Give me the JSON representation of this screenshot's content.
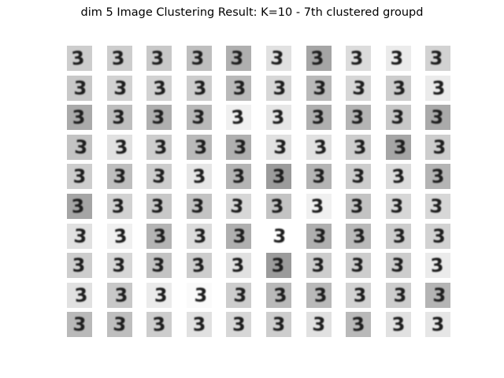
{
  "figure": {
    "title": "dim 5 Image Clustering Result: K=10 - 7th clustered groupd"
  },
  "cluster_grid": {
    "rows": 10,
    "cols": 10,
    "digit": "3",
    "tile_background_gray": [
      [
        205,
        205,
        200,
        190,
        175,
        225,
        165,
        220,
        235,
        210
      ],
      [
        200,
        210,
        210,
        205,
        185,
        215,
        185,
        215,
        205,
        235
      ],
      [
        170,
        190,
        175,
        185,
        240,
        230,
        175,
        180,
        200,
        170
      ],
      [
        195,
        225,
        205,
        185,
        175,
        225,
        225,
        205,
        165,
        205
      ],
      [
        205,
        190,
        205,
        230,
        180,
        155,
        180,
        205,
        220,
        180
      ],
      [
        165,
        210,
        200,
        195,
        215,
        195,
        240,
        195,
        215,
        215
      ],
      [
        225,
        240,
        180,
        220,
        175,
        255,
        175,
        185,
        205,
        210
      ],
      [
        205,
        215,
        195,
        205,
        225,
        155,
        205,
        205,
        205,
        235
      ],
      [
        225,
        200,
        235,
        250,
        205,
        185,
        185,
        210,
        205,
        180
      ],
      [
        185,
        190,
        205,
        225,
        215,
        205,
        225,
        185,
        225,
        230
      ]
    ]
  }
}
